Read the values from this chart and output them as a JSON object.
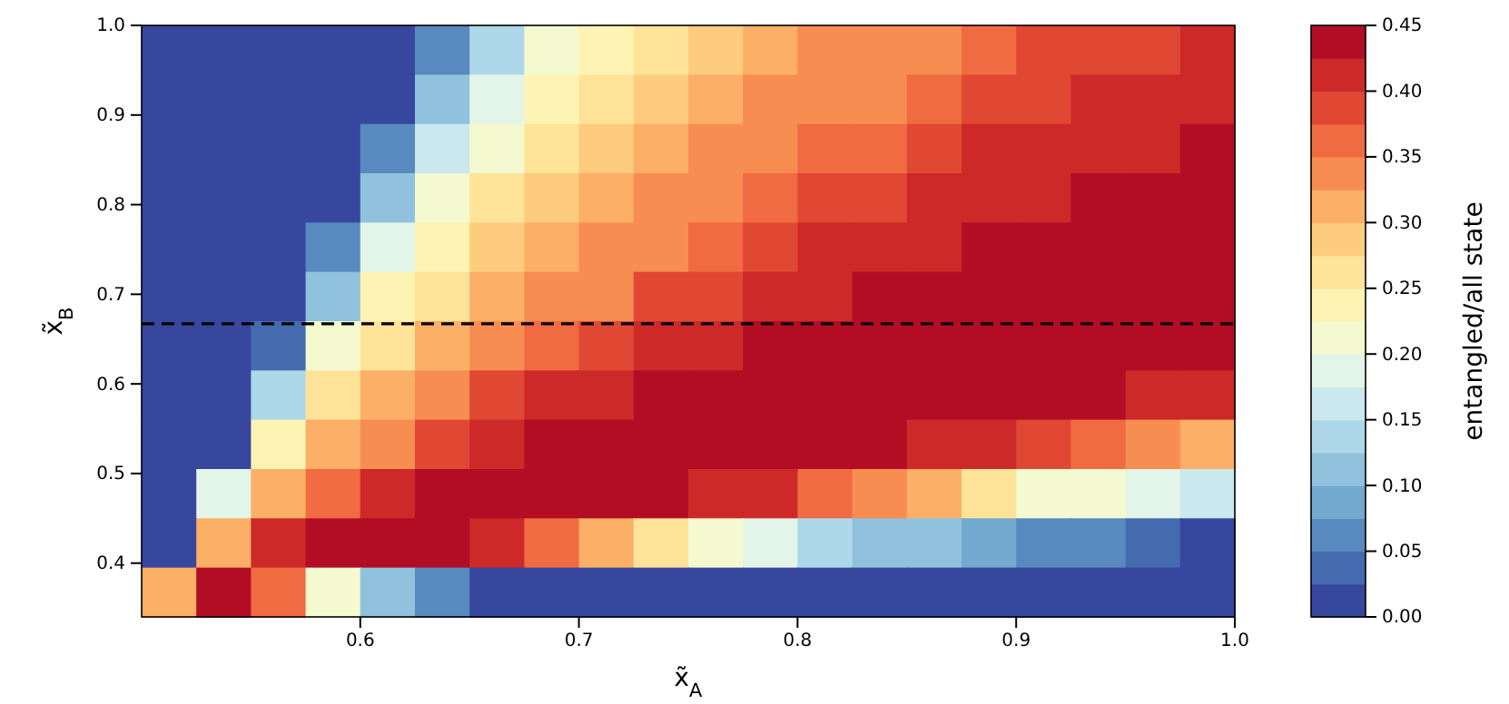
{
  "chart_data": {
    "type": "heatmap",
    "xlabel": "x̃$_{A}$",
    "ylabel": "x̃$_{B}$",
    "clabel": "entangled/all state",
    "x": [
      0.5125,
      0.5375,
      0.5625,
      0.5875,
      0.6125,
      0.6375,
      0.6625,
      0.6875,
      0.7125,
      0.7375,
      0.7625,
      0.7875,
      0.8125,
      0.8375,
      0.8625,
      0.8875,
      0.9125,
      0.9375,
      0.9625,
      0.9875
    ],
    "y": [
      0.9725,
      0.9175,
      0.8625,
      0.8075,
      0.7525,
      0.6975,
      0.6425,
      0.5875,
      0.5325,
      0.4775,
      0.4225,
      0.3675
    ],
    "xlim": [
      0.5,
      1.0
    ],
    "ylim": [
      0.34,
      1.0
    ],
    "xticks": [
      0.6,
      0.7,
      0.8,
      0.9,
      {
        "value": 1.0,
        "label": "1.0"
      }
    ],
    "yticks": [
      0.4,
      0.5,
      0.6,
      0.7,
      0.8,
      0.9,
      {
        "value": 1.0,
        "label": "1.0"
      }
    ],
    "clim": [
      0,
      0.45
    ],
    "cticks": [
      {
        "value": 0,
        "label": "0.00"
      },
      0.05,
      {
        "value": 0.1,
        "label": "0.10"
      },
      0.15,
      {
        "value": 0.2,
        "label": "0.20"
      },
      0.25,
      {
        "value": 0.3,
        "label": "0.30"
      },
      0.35,
      {
        "value": 0.4,
        "label": "0.40"
      },
      0.45
    ],
    "cells": [
      [
        0,
        0,
        0,
        0,
        0,
        0.07,
        0.15,
        0.21,
        0.24,
        0.27,
        0.29,
        0.31,
        0.33,
        0.34,
        0.35,
        0.36,
        0.38,
        0.38,
        0.39,
        0.4
      ],
      [
        0,
        0,
        0,
        0,
        0.01,
        0.11,
        0.19,
        0.23,
        0.26,
        0.29,
        0.31,
        0.33,
        0.34,
        0.35,
        0.37,
        0.38,
        0.39,
        0.4,
        0.41,
        0.42
      ],
      [
        0,
        0,
        0,
        0,
        0.07,
        0.16,
        0.22,
        0.26,
        0.29,
        0.31,
        0.33,
        0.34,
        0.36,
        0.37,
        0.39,
        0.4,
        0.41,
        0.42,
        0.42,
        0.43
      ],
      [
        0,
        0,
        0,
        0,
        0.12,
        0.21,
        0.25,
        0.29,
        0.31,
        0.33,
        0.35,
        0.36,
        0.38,
        0.39,
        0.4,
        0.41,
        0.42,
        0.43,
        0.44,
        0.44
      ],
      [
        0,
        0,
        0,
        0.06,
        0.18,
        0.24,
        0.28,
        0.31,
        0.33,
        0.35,
        0.37,
        0.39,
        0.4,
        0.41,
        0.42,
        0.43,
        0.44,
        0.44,
        0.44,
        0.44
      ],
      [
        0,
        0,
        0,
        0.12,
        0.23,
        0.27,
        0.31,
        0.33,
        0.35,
        0.38,
        0.39,
        0.41,
        0.42,
        0.43,
        0.44,
        0.44,
        0.44,
        0.44,
        0.44,
        0.44
      ],
      [
        0,
        0,
        0.04,
        0.2,
        0.27,
        0.31,
        0.34,
        0.37,
        0.39,
        0.41,
        0.42,
        0.43,
        0.44,
        0.44,
        0.44,
        0.44,
        0.44,
        0.44,
        0.44,
        0.43
      ],
      [
        0,
        0,
        0.13,
        0.26,
        0.31,
        0.34,
        0.38,
        0.4,
        0.42,
        0.43,
        0.44,
        0.44,
        0.44,
        0.44,
        0.44,
        0.43,
        0.43,
        0.43,
        0.42,
        0.41
      ],
      [
        0,
        0.01,
        0.23,
        0.31,
        0.35,
        0.39,
        0.42,
        0.43,
        0.44,
        0.44,
        0.44,
        0.44,
        0.43,
        0.43,
        0.42,
        0.41,
        0.39,
        0.37,
        0.35,
        0.32
      ],
      [
        0,
        0.18,
        0.31,
        0.37,
        0.41,
        0.44,
        0.44,
        0.44,
        0.44,
        0.43,
        0.42,
        0.4,
        0.37,
        0.34,
        0.31,
        0.26,
        0.22,
        0.2,
        0.19,
        0.17
      ],
      [
        0,
        0.31,
        0.4,
        0.44,
        0.44,
        0.43,
        0.41,
        0.37,
        0.32,
        0.26,
        0.2,
        0.18,
        0.15,
        0.12,
        0.11,
        0.08,
        0.07,
        0.05,
        0.03,
        0.02
      ],
      [
        0.31,
        0.44,
        0.37,
        0.2,
        0.12,
        0.07,
        0.02,
        0,
        0,
        0,
        0,
        0,
        0,
        0,
        0,
        0,
        0,
        0,
        0,
        0
      ]
    ],
    "ref_lines": [
      {
        "axis": "y",
        "value": 0.667,
        "color": "#000000",
        "line_style": "dashed"
      }
    ]
  }
}
